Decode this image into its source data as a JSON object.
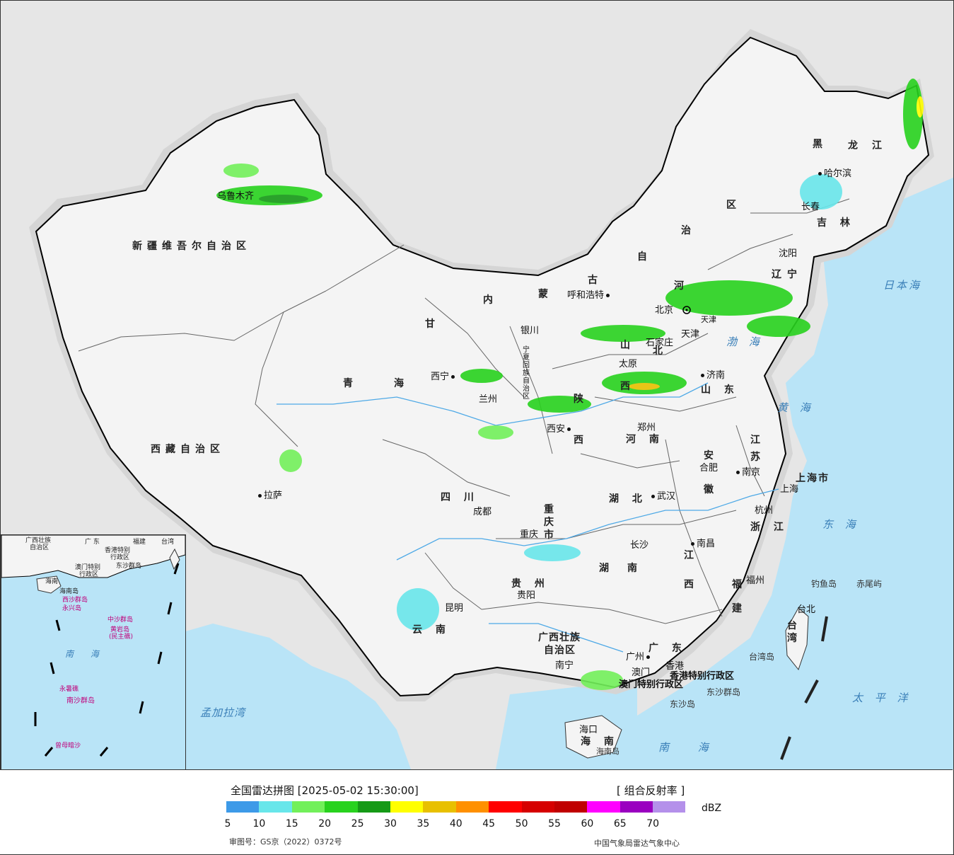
{
  "legend": {
    "title": "全国雷达拼图 [2025-05-02 15:30:00]",
    "product": "[ 组合反射率 ]",
    "unit": "dBZ",
    "ticks": [
      "5",
      "10",
      "15",
      "20",
      "25",
      "30",
      "35",
      "40",
      "45",
      "50",
      "55",
      "60",
      "65",
      "70"
    ],
    "colors": [
      "#3d9ae8",
      "#68e6ea",
      "#72f05a",
      "#28d21e",
      "#159a16",
      "#ffff00",
      "#e8c000",
      "#ff9000",
      "#ff0000",
      "#d60000",
      "#c00000",
      "#ff00ff",
      "#9a00c0",
      "#b490ea"
    ],
    "approval": "审图号：GS京（2022）0372号",
    "source": "中国气象局雷达气象中心"
  },
  "colors": {
    "sea": "#b9e4f7",
    "land": "#f4f4f4",
    "outside": "#e6e6e6",
    "border": "#000000"
  },
  "provinces": {
    "xinjiang": "新疆维吾尔自治区",
    "xizang": "西藏自治区",
    "qinghai_1": "青",
    "qinghai_2": "海",
    "gansu": "甘",
    "neimenggu_1": "内",
    "neimenggu_2": "蒙",
    "neimenggu_3": "古",
    "neimenggu_4": "自",
    "neimenggu_5": "治",
    "neimenggu_6": "区",
    "heilongjiang_1": "黑",
    "heilongjiang_2": "龙",
    "heilongjiang_3": "江",
    "jilin": "吉 林",
    "liaoning_1": "辽",
    "liaoning_2": "宁",
    "hebei_1": "河",
    "hebei_2": "北",
    "tianjin": "天津",
    "shanxi_1": "山",
    "shanxi_2": "西",
    "shaanxi_1": "陕",
    "shaanxi_2": "西",
    "ningxia": "宁夏回族自治区",
    "shandong": "山 东",
    "henan": "河 南",
    "jiangsu_1": "江",
    "jiangsu_2": "苏",
    "anhui_1": "安",
    "anhui_2": "徽",
    "shanghai": "上海市",
    "zhejiang": "浙 江",
    "hubei": "湖 北",
    "sichuan": "四 川",
    "chongqing": "重庆市",
    "hunan_1": "湖",
    "hunan_2": "南",
    "jiangxi_1": "江",
    "jiangxi_2": "西",
    "fujian_1": "福",
    "fujian_2": "建",
    "guizhou": "贵 州",
    "yunnan": "云 南",
    "guangxi_1": "广西壮族",
    "guangxi_2": "自治区",
    "guangdong": "广 东",
    "hongkong": "香港特别行政区",
    "macau": "澳门特别行政区",
    "hainan": "海 南",
    "taiwan": "台湾"
  },
  "cities": {
    "beijing": "北京",
    "urumqi": "乌鲁木齐",
    "lhasa": "拉萨",
    "xining": "西宁",
    "lanzhou": "兰州",
    "yinchuan": "银川",
    "hohhot": "呼和浩特",
    "harbin": "哈尔滨",
    "changchun": "长春",
    "shenyang": "沈阳",
    "tianjin": "天津",
    "shijiazhuang": "石家庄",
    "taiyuan": "太原",
    "jinan": "济南",
    "zhengzhou": "郑州",
    "xian": "西安",
    "hefei": "合肥",
    "nanjing": "南京",
    "shanghai": "上海",
    "hangzhou": "杭州",
    "wuhan": "武汉",
    "chengdu": "成都",
    "chongqing": "重庆",
    "changsha": "长沙",
    "nanchang": "南昌",
    "fuzhou": "福州",
    "guiyang": "贵阳",
    "kunming": "昆明",
    "nanning": "南宁",
    "guangzhou": "广州",
    "hongkong": "香港",
    "macau": "澳门",
    "haikou": "海口",
    "taibei": "台北"
  },
  "seas": {
    "japan_sea": "日本海",
    "bohai": "渤 海",
    "yellow_sea": "黄 海",
    "east_sea": "东 海",
    "pacific": "太 平 洋",
    "south_sea": "南 海",
    "bengal": "孟加拉湾"
  },
  "islands": {
    "diaoyu": "钓鱼岛",
    "chiwei": "赤尾屿",
    "taiwan_island": "台湾岛",
    "dongsha_islands": "东沙群岛",
    "dongsha": "东沙岛",
    "hainan_island": "海南岛"
  },
  "inset": {
    "guangxi": "广西壮族",
    "guangxi2": "自治区",
    "guangdong": "广 东",
    "fujian": "福建",
    "taiwan": "台湾",
    "hongkong": "香港特别",
    "hongkong2": "行政区",
    "macau": "澳门特别",
    "macau2": "行政区",
    "dongsha": "东沙群岛",
    "hainan": "海南",
    "hainan_island": "海南岛",
    "xisha": "西沙群岛",
    "yongxing": "永兴岛",
    "zhongsha": "中沙群岛",
    "huangyan": "黄岩岛",
    "huangyan2": "(民主礁)",
    "south_sea": "南 海",
    "yongshu": "永暑礁",
    "nansha": "南沙群岛",
    "zengmu": "曾母暗沙"
  }
}
